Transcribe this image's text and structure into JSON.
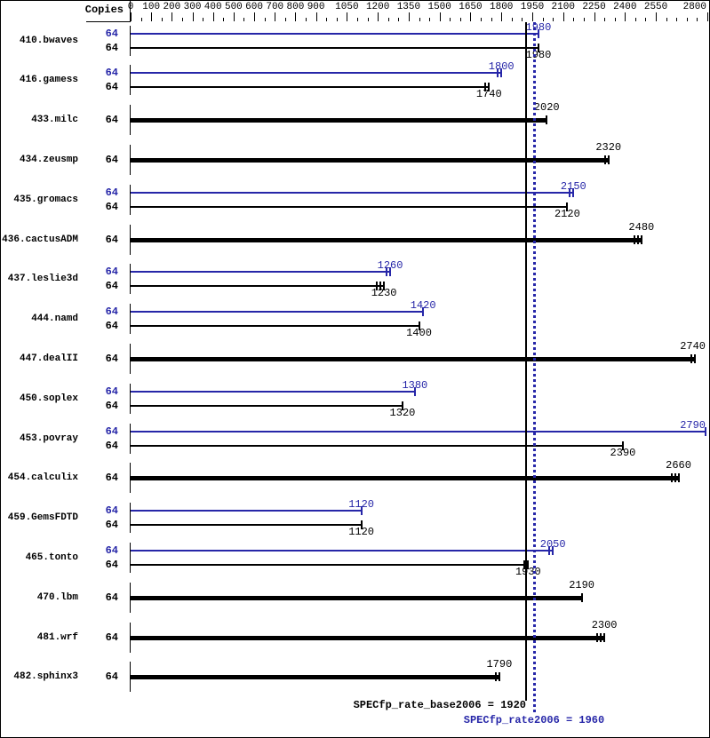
{
  "chart_data": {
    "type": "bar",
    "orientation": "horizontal",
    "copies_header": "Copies",
    "copies_column_values_note": "each benchmark run with 64 copies",
    "axis": {
      "min": 0,
      "max": 2800,
      "minor_step": 50,
      "labels": [
        0,
        100,
        200,
        300,
        400,
        500,
        600,
        700,
        800,
        900,
        1050,
        1200,
        1350,
        1500,
        1650,
        1800,
        1950,
        2100,
        2250,
        2400,
        2550,
        2800
      ]
    },
    "series_colors": {
      "peak": "#2626a8",
      "base": "#000000"
    },
    "reference_lines": [
      {
        "name": "base",
        "value": 1920,
        "style": "solid",
        "color": "#000000",
        "label": "SPECfp_rate_base2006 = 1920"
      },
      {
        "name": "peak",
        "value": 1960,
        "style": "dotted",
        "color": "#2626a8",
        "label": "SPECfp_rate2006 = 1960"
      }
    ],
    "benchmarks": [
      {
        "name": "410.bwaves",
        "copies": 64,
        "peak": 1980,
        "peak_ticks": 1,
        "base": 1980,
        "base_ticks": 1
      },
      {
        "name": "416.gamess",
        "copies": 64,
        "peak": 1800,
        "peak_ticks": 2,
        "base": 1740,
        "base_ticks": 2
      },
      {
        "name": "433.milc",
        "copies": 64,
        "peak": null,
        "peak_ticks": 0,
        "base": 2020,
        "base_ticks": 1
      },
      {
        "name": "434.zeusmp",
        "copies": 64,
        "peak": null,
        "peak_ticks": 0,
        "base": 2320,
        "base_ticks": 2
      },
      {
        "name": "435.gromacs",
        "copies": 64,
        "peak": 2150,
        "peak_ticks": 2,
        "base": 2120,
        "base_ticks": 1
      },
      {
        "name": "436.cactusADM",
        "copies": 64,
        "peak": null,
        "peak_ticks": 0,
        "base": 2480,
        "base_ticks": 3
      },
      {
        "name": "437.leslie3d",
        "copies": 64,
        "peak": 1260,
        "peak_ticks": 2,
        "base": 1230,
        "base_ticks": 3
      },
      {
        "name": "444.namd",
        "copies": 64,
        "peak": 1420,
        "peak_ticks": 1,
        "base": 1400,
        "base_ticks": 1
      },
      {
        "name": "447.dealII",
        "copies": 64,
        "peak": null,
        "peak_ticks": 0,
        "base": 2740,
        "base_ticks": 2
      },
      {
        "name": "450.soplex",
        "copies": 64,
        "peak": 1380,
        "peak_ticks": 1,
        "base": 1320,
        "base_ticks": 1
      },
      {
        "name": "453.povray",
        "copies": 64,
        "peak": 2790,
        "peak_ticks": 1,
        "base": 2390,
        "base_ticks": 1
      },
      {
        "name": "454.calculix",
        "copies": 64,
        "peak": null,
        "peak_ticks": 0,
        "base": 2660,
        "base_ticks": 3
      },
      {
        "name": "459.GemsFDTD",
        "copies": 64,
        "peak": 1120,
        "peak_ticks": 1,
        "base": 1120,
        "base_ticks": 1
      },
      {
        "name": "465.tonto",
        "copies": 64,
        "peak": 2050,
        "peak_ticks": 2,
        "base": 1930,
        "base_ticks": 2
      },
      {
        "name": "470.lbm",
        "copies": 64,
        "peak": null,
        "peak_ticks": 0,
        "base": 2190,
        "base_ticks": 1
      },
      {
        "name": "481.wrf",
        "copies": 64,
        "peak": null,
        "peak_ticks": 0,
        "base": 2300,
        "base_ticks": 3
      },
      {
        "name": "482.sphinx3",
        "copies": 64,
        "peak": null,
        "peak_ticks": 0,
        "base": 1790,
        "base_ticks": 2
      }
    ]
  },
  "colors": {
    "background": "#ffffff",
    "border": "#000000"
  }
}
